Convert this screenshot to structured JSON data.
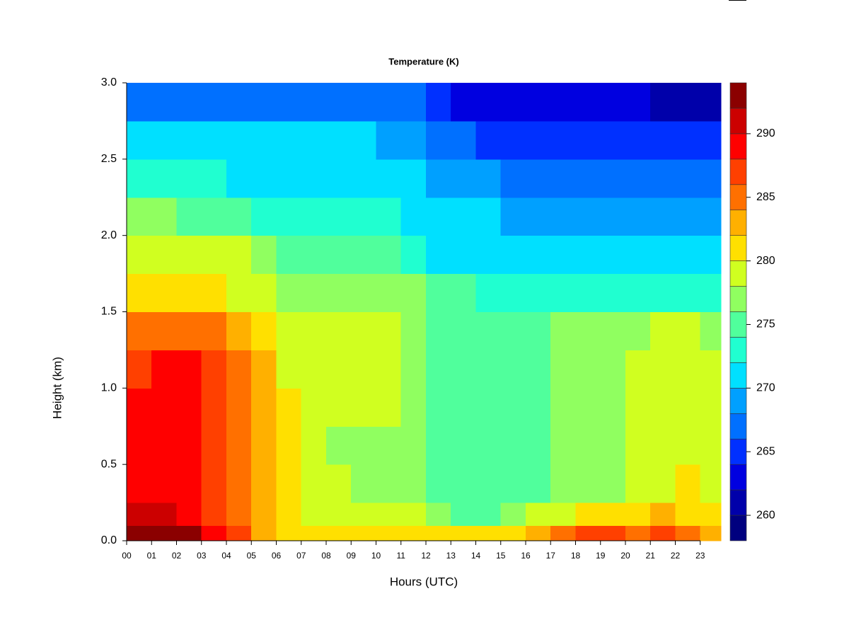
{
  "chart_data": {
    "type": "contour",
    "title": "Temperature (K)",
    "x_label": "Hours (UTC)",
    "y_label": "Height (km)",
    "x": [
      0,
      1,
      2,
      3,
      4,
      5,
      6,
      7,
      8,
      9,
      10,
      11,
      12,
      13,
      14,
      15,
      16,
      17,
      18,
      19,
      20,
      21,
      22,
      23
    ],
    "y": [
      0,
      0.1,
      0.25,
      0.5,
      0.75,
      1.0,
      1.25,
      1.5,
      1.75,
      2.0,
      2.25,
      2.5,
      2.75
    ],
    "z": [
      [
        292,
        292,
        292,
        289,
        286,
        283,
        281,
        280,
        280,
        280,
        280,
        280,
        281,
        281,
        281,
        281,
        283,
        285,
        287,
        287,
        285,
        287,
        285,
        283
      ],
      [
        290,
        290,
        289,
        287,
        285,
        283,
        281,
        279,
        279,
        279,
        279,
        279,
        277,
        275,
        275,
        277,
        279,
        279,
        281,
        281,
        281,
        283,
        281,
        281
      ],
      [
        289,
        289,
        289,
        287,
        285,
        283,
        281,
        279,
        279,
        277,
        277,
        277,
        275,
        275,
        275,
        275,
        275,
        277,
        277,
        277,
        279,
        279,
        281,
        279
      ],
      [
        289,
        289,
        289,
        287,
        285,
        283,
        281,
        279,
        277,
        277,
        277,
        277,
        275,
        275,
        275,
        275,
        275,
        277,
        277,
        277,
        279,
        279,
        279,
        279
      ],
      [
        289,
        289,
        289,
        287,
        285,
        283,
        281,
        279,
        279,
        279,
        279,
        277,
        275,
        275,
        275,
        275,
        275,
        277,
        277,
        277,
        279,
        279,
        279,
        279
      ],
      [
        287,
        289,
        289,
        287,
        285,
        283,
        279,
        279,
        279,
        279,
        279,
        277,
        275,
        275,
        275,
        275,
        275,
        277,
        277,
        277,
        279,
        279,
        279,
        279
      ],
      [
        285,
        285,
        285,
        285,
        283,
        281,
        279,
        279,
        279,
        279,
        279,
        277,
        275,
        275,
        275,
        275,
        275,
        277,
        277,
        277,
        277,
        279,
        279,
        277
      ],
      [
        281,
        281,
        281,
        281,
        279,
        279,
        277,
        277,
        277,
        277,
        277,
        277,
        275,
        275,
        273,
        273,
        273,
        273,
        273,
        273,
        273,
        273,
        273,
        273
      ],
      [
        279,
        279,
        279,
        279,
        279,
        277,
        275,
        275,
        275,
        275,
        275,
        273,
        271,
        271,
        271,
        271,
        271,
        271,
        271,
        271,
        271,
        271,
        271,
        271
      ],
      [
        277,
        277,
        275,
        275,
        275,
        273,
        273,
        273,
        273,
        273,
        273,
        271,
        271,
        271,
        271,
        269,
        269,
        269,
        269,
        269,
        269,
        269,
        269,
        269
      ],
      [
        273,
        273,
        273,
        273,
        271,
        271,
        271,
        271,
        271,
        271,
        271,
        271,
        269,
        269,
        269,
        267,
        267,
        267,
        267,
        267,
        267,
        267,
        267,
        267
      ],
      [
        271,
        271,
        271,
        271,
        271,
        271,
        271,
        271,
        271,
        271,
        269,
        269,
        267,
        267,
        265,
        265,
        265,
        265,
        265,
        265,
        265,
        265,
        265,
        265
      ],
      [
        267,
        267,
        267,
        267,
        267,
        267,
        267,
        267,
        267,
        267,
        267,
        267,
        265,
        263,
        263,
        263,
        263,
        263,
        263,
        263,
        263,
        261,
        261,
        261
      ]
    ],
    "xlim": [
      0,
      23.83
    ],
    "xticks": [
      {
        "value": 0,
        "label": "00"
      },
      {
        "value": 1,
        "label": "01"
      },
      {
        "value": 2,
        "label": "02"
      },
      {
        "value": 3,
        "label": "03"
      },
      {
        "value": 4,
        "label": "04"
      },
      {
        "value": 5,
        "label": "05"
      },
      {
        "value": 6,
        "label": "06"
      },
      {
        "value": 7,
        "label": "07"
      },
      {
        "value": 8,
        "label": "08"
      },
      {
        "value": 9,
        "label": "09"
      },
      {
        "value": 10,
        "label": "10"
      },
      {
        "value": 11,
        "label": "11"
      },
      {
        "value": 12,
        "label": "12"
      },
      {
        "value": 13,
        "label": "13"
      },
      {
        "value": 14,
        "label": "14"
      },
      {
        "value": 15,
        "label": "15"
      },
      {
        "value": 16,
        "label": "16"
      },
      {
        "value": 17,
        "label": "17"
      },
      {
        "value": 18,
        "label": "18"
      },
      {
        "value": 19,
        "label": "19"
      },
      {
        "value": 20,
        "label": "20"
      },
      {
        "value": 21,
        "label": "21"
      },
      {
        "value": 22,
        "label": "22"
      },
      {
        "value": 23,
        "label": "23"
      }
    ],
    "ylim": [
      0,
      3
    ],
    "yticks": [
      {
        "value": 0,
        "label": "0.0"
      },
      0.5,
      {
        "value": 1,
        "label": "1.0"
      },
      1.5,
      {
        "value": 2,
        "label": "2.0"
      },
      2.5,
      {
        "value": 3,
        "label": "3.0"
      }
    ],
    "levels": [
      258,
      260,
      262,
      264,
      266,
      268,
      270,
      272,
      274,
      276,
      278,
      280,
      282,
      284,
      286,
      288,
      290,
      292,
      294
    ],
    "colors": [
      "#00007f",
      "#0000aa",
      "#0000e0",
      "#0030ff",
      "#0070ff",
      "#00a0ff",
      "#00e0ff",
      "#20ffd0",
      "#50ff9c",
      "#90ff60",
      "#d0ff20",
      "#ffe000",
      "#ffb000",
      "#ff7000",
      "#ff4000",
      "#ff0000",
      "#cc0000",
      "#8b0000"
    ],
    "clim": [
      258,
      294
    ],
    "cticks": [
      260,
      265,
      270,
      275,
      280,
      285,
      290
    ]
  }
}
